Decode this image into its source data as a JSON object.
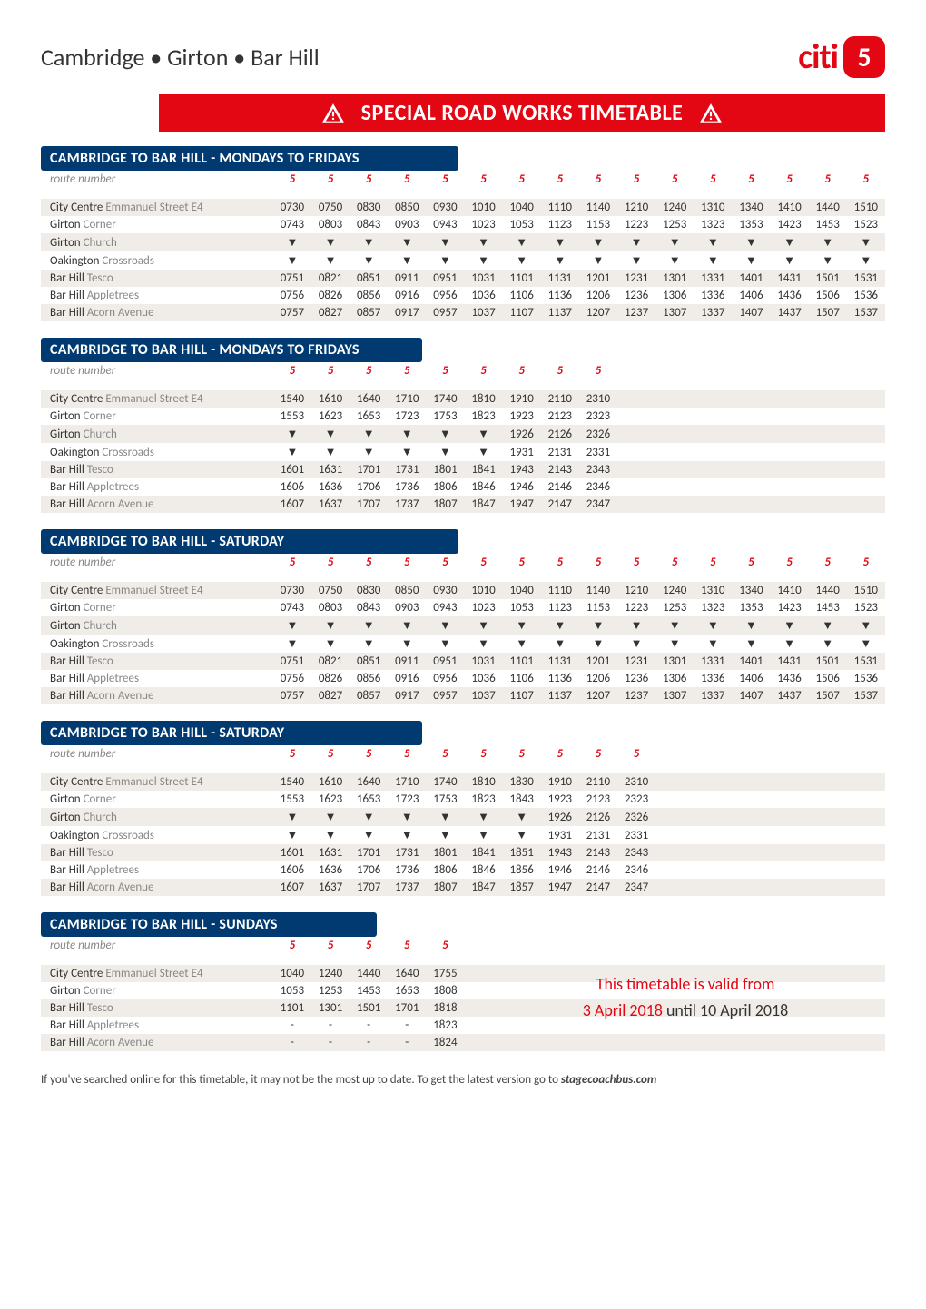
{
  "header": {
    "route_title": "Cambridge • Girton • Bar Hill",
    "logo_text": "citi",
    "logo_number": "5",
    "banner_text": "SPECIAL ROAD WORKS TIMETABLE"
  },
  "stops": [
    {
      "main": "City Centre",
      "sub": " Emmanuel Street E4"
    },
    {
      "main": "Girton",
      "sub": " Corner"
    },
    {
      "main": "Girton",
      "sub": " Church"
    },
    {
      "main": "Oakington",
      "sub": " Crossroads"
    },
    {
      "main": "Bar Hill",
      "sub": " Tesco"
    },
    {
      "main": "Bar Hill",
      "sub": " Appletrees"
    },
    {
      "main": "Bar Hill",
      "sub": " Acorn Avenue"
    }
  ],
  "stops_sun": [
    {
      "main": "City Centre",
      "sub": " Emmanuel Street E4"
    },
    {
      "main": "Girton",
      "sub": " Corner"
    },
    {
      "main": "Bar Hill",
      "sub": " Tesco"
    },
    {
      "main": "Bar Hill",
      "sub": " Appletrees"
    },
    {
      "main": "Bar Hill",
      "sub": " Acorn Avenue"
    }
  ],
  "route_number_label": "route number",
  "route_number": "5",
  "sections": [
    {
      "title": "CAMBRIDGE TO BAR HILL - MONDAYS TO FRIDAYS",
      "cols": 16,
      "rows": [
        [
          "0730",
          "0750",
          "0830",
          "0850",
          "0930",
          "1010",
          "1040",
          "1110",
          "1140",
          "1210",
          "1240",
          "1310",
          "1340",
          "1410",
          "1440",
          "1510"
        ],
        [
          "0743",
          "0803",
          "0843",
          "0903",
          "0943",
          "1023",
          "1053",
          "1123",
          "1153",
          "1223",
          "1253",
          "1323",
          "1353",
          "1423",
          "1453",
          "1523"
        ],
        [
          "▼",
          "▼",
          "▼",
          "▼",
          "▼",
          "▼",
          "▼",
          "▼",
          "▼",
          "▼",
          "▼",
          "▼",
          "▼",
          "▼",
          "▼",
          "▼"
        ],
        [
          "▼",
          "▼",
          "▼",
          "▼",
          "▼",
          "▼",
          "▼",
          "▼",
          "▼",
          "▼",
          "▼",
          "▼",
          "▼",
          "▼",
          "▼",
          "▼"
        ],
        [
          "0751",
          "0821",
          "0851",
          "0911",
          "0951",
          "1031",
          "1101",
          "1131",
          "1201",
          "1231",
          "1301",
          "1331",
          "1401",
          "1431",
          "1501",
          "1531"
        ],
        [
          "0756",
          "0826",
          "0856",
          "0916",
          "0956",
          "1036",
          "1106",
          "1136",
          "1206",
          "1236",
          "1306",
          "1336",
          "1406",
          "1436",
          "1506",
          "1536"
        ],
        [
          "0757",
          "0827",
          "0857",
          "0917",
          "0957",
          "1037",
          "1107",
          "1137",
          "1207",
          "1237",
          "1307",
          "1337",
          "1407",
          "1437",
          "1507",
          "1537"
        ]
      ]
    },
    {
      "title": "CAMBRIDGE TO BAR HILL - MONDAYS TO FRIDAYS",
      "cols": 9,
      "rows": [
        [
          "1540",
          "1610",
          "1640",
          "1710",
          "1740",
          "1810",
          "1910",
          "2110",
          "2310"
        ],
        [
          "1553",
          "1623",
          "1653",
          "1723",
          "1753",
          "1823",
          "1923",
          "2123",
          "2323"
        ],
        [
          "▼",
          "▼",
          "▼",
          "▼",
          "▼",
          "▼",
          "1926",
          "2126",
          "2326"
        ],
        [
          "▼",
          "▼",
          "▼",
          "▼",
          "▼",
          "▼",
          "1931",
          "2131",
          "2331"
        ],
        [
          "1601",
          "1631",
          "1701",
          "1731",
          "1801",
          "1841",
          "1943",
          "2143",
          "2343"
        ],
        [
          "1606",
          "1636",
          "1706",
          "1736",
          "1806",
          "1846",
          "1946",
          "2146",
          "2346"
        ],
        [
          "1607",
          "1637",
          "1707",
          "1737",
          "1807",
          "1847",
          "1947",
          "2147",
          "2347"
        ]
      ]
    },
    {
      "title": "CAMBRIDGE TO BAR HILL - SATURDAY",
      "cols": 16,
      "rows": [
        [
          "0730",
          "0750",
          "0830",
          "0850",
          "0930",
          "1010",
          "1040",
          "1110",
          "1140",
          "1210",
          "1240",
          "1310",
          "1340",
          "1410",
          "1440",
          "1510"
        ],
        [
          "0743",
          "0803",
          "0843",
          "0903",
          "0943",
          "1023",
          "1053",
          "1123",
          "1153",
          "1223",
          "1253",
          "1323",
          "1353",
          "1423",
          "1453",
          "1523"
        ],
        [
          "▼",
          "▼",
          "▼",
          "▼",
          "▼",
          "▼",
          "▼",
          "▼",
          "▼",
          "▼",
          "▼",
          "▼",
          "▼",
          "▼",
          "▼",
          "▼"
        ],
        [
          "▼",
          "▼",
          "▼",
          "▼",
          "▼",
          "▼",
          "▼",
          "▼",
          "▼",
          "▼",
          "▼",
          "▼",
          "▼",
          "▼",
          "▼",
          "▼"
        ],
        [
          "0751",
          "0821",
          "0851",
          "0911",
          "0951",
          "1031",
          "1101",
          "1131",
          "1201",
          "1231",
          "1301",
          "1331",
          "1401",
          "1431",
          "1501",
          "1531"
        ],
        [
          "0756",
          "0826",
          "0856",
          "0916",
          "0956",
          "1036",
          "1106",
          "1136",
          "1206",
          "1236",
          "1306",
          "1336",
          "1406",
          "1436",
          "1506",
          "1536"
        ],
        [
          "0757",
          "0827",
          "0857",
          "0917",
          "0957",
          "1037",
          "1107",
          "1137",
          "1207",
          "1237",
          "1307",
          "1337",
          "1407",
          "1437",
          "1507",
          "1537"
        ]
      ]
    },
    {
      "title": "CAMBRIDGE TO BAR HILL - SATURDAY",
      "cols": 10,
      "rows": [
        [
          "1540",
          "1610",
          "1640",
          "1710",
          "1740",
          "1810",
          "1830",
          "1910",
          "2110",
          "2310"
        ],
        [
          "1553",
          "1623",
          "1653",
          "1723",
          "1753",
          "1823",
          "1843",
          "1923",
          "2123",
          "2323"
        ],
        [
          "▼",
          "▼",
          "▼",
          "▼",
          "▼",
          "▼",
          "▼",
          "1926",
          "2126",
          "2326"
        ],
        [
          "▼",
          "▼",
          "▼",
          "▼",
          "▼",
          "▼",
          "▼",
          "1931",
          "2131",
          "2331"
        ],
        [
          "1601",
          "1631",
          "1701",
          "1731",
          "1801",
          "1841",
          "1851",
          "1943",
          "2143",
          "2343"
        ],
        [
          "1606",
          "1636",
          "1706",
          "1736",
          "1806",
          "1846",
          "1856",
          "1946",
          "2146",
          "2346"
        ],
        [
          "1607",
          "1637",
          "1707",
          "1737",
          "1807",
          "1847",
          "1857",
          "1947",
          "2147",
          "2347"
        ]
      ]
    },
    {
      "title": "CAMBRIDGE TO BAR HILL - SUNDAYS",
      "cols": 5,
      "sunday": true,
      "rows": [
        [
          "1040",
          "1240",
          "1440",
          "1640",
          "1755"
        ],
        [
          "1053",
          "1253",
          "1453",
          "1653",
          "1808"
        ],
        [
          "1101",
          "1301",
          "1501",
          "1701",
          "1818"
        ],
        [
          "-",
          "-",
          "-",
          "-",
          "1823"
        ],
        [
          "-",
          "-",
          "-",
          "-",
          "1824"
        ]
      ]
    }
  ],
  "validity": {
    "line1": "This timetable is valid from",
    "line2_a": "3 April 2018",
    "line2_mid": " until ",
    "line2_b": "10 April 2018"
  },
  "footer": {
    "text": "If you've searched online for this timetable, it may not be the most up to date. To get the latest version go to ",
    "link": "stagecoachbus.com"
  },
  "colors": {
    "brand_red": "#e30613",
    "header_blue": "#003a70",
    "shade": "#f0ece7"
  }
}
